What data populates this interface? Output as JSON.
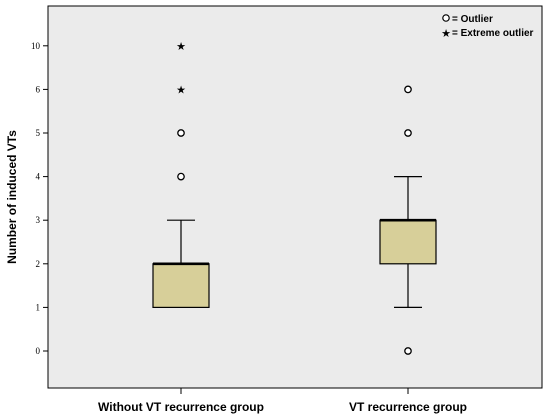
{
  "chart_data": {
    "type": "boxplot",
    "ylabel": "Number of induced VTs",
    "xlabel": "",
    "y_ticks": [
      0,
      1,
      2,
      3,
      4,
      5,
      6,
      10
    ],
    "y_tick_positions": [
      0,
      1,
      2,
      3,
      4,
      5,
      6,
      7
    ],
    "grid": false,
    "legend_position": "top-right",
    "legend": [
      {
        "symbol": "circle",
        "label": "= Outlier"
      },
      {
        "symbol": "star",
        "label": "= Extreme outlier"
      }
    ],
    "colors": {
      "box_fill": "#d7cf99",
      "background": "#ebebeb"
    },
    "groups": [
      {
        "name": "Without VT recurrence group",
        "min": 1,
        "q1": 1,
        "median": 2,
        "q3": 2,
        "max": 3,
        "outliers": [
          4,
          5
        ],
        "extreme_outliers": [
          6,
          10
        ]
      },
      {
        "name": "VT recurrence group",
        "min": 1,
        "q1": 2,
        "median": 3,
        "q3": 3,
        "max": 4,
        "outliers": [
          0,
          5,
          6
        ],
        "extreme_outliers": []
      }
    ]
  }
}
